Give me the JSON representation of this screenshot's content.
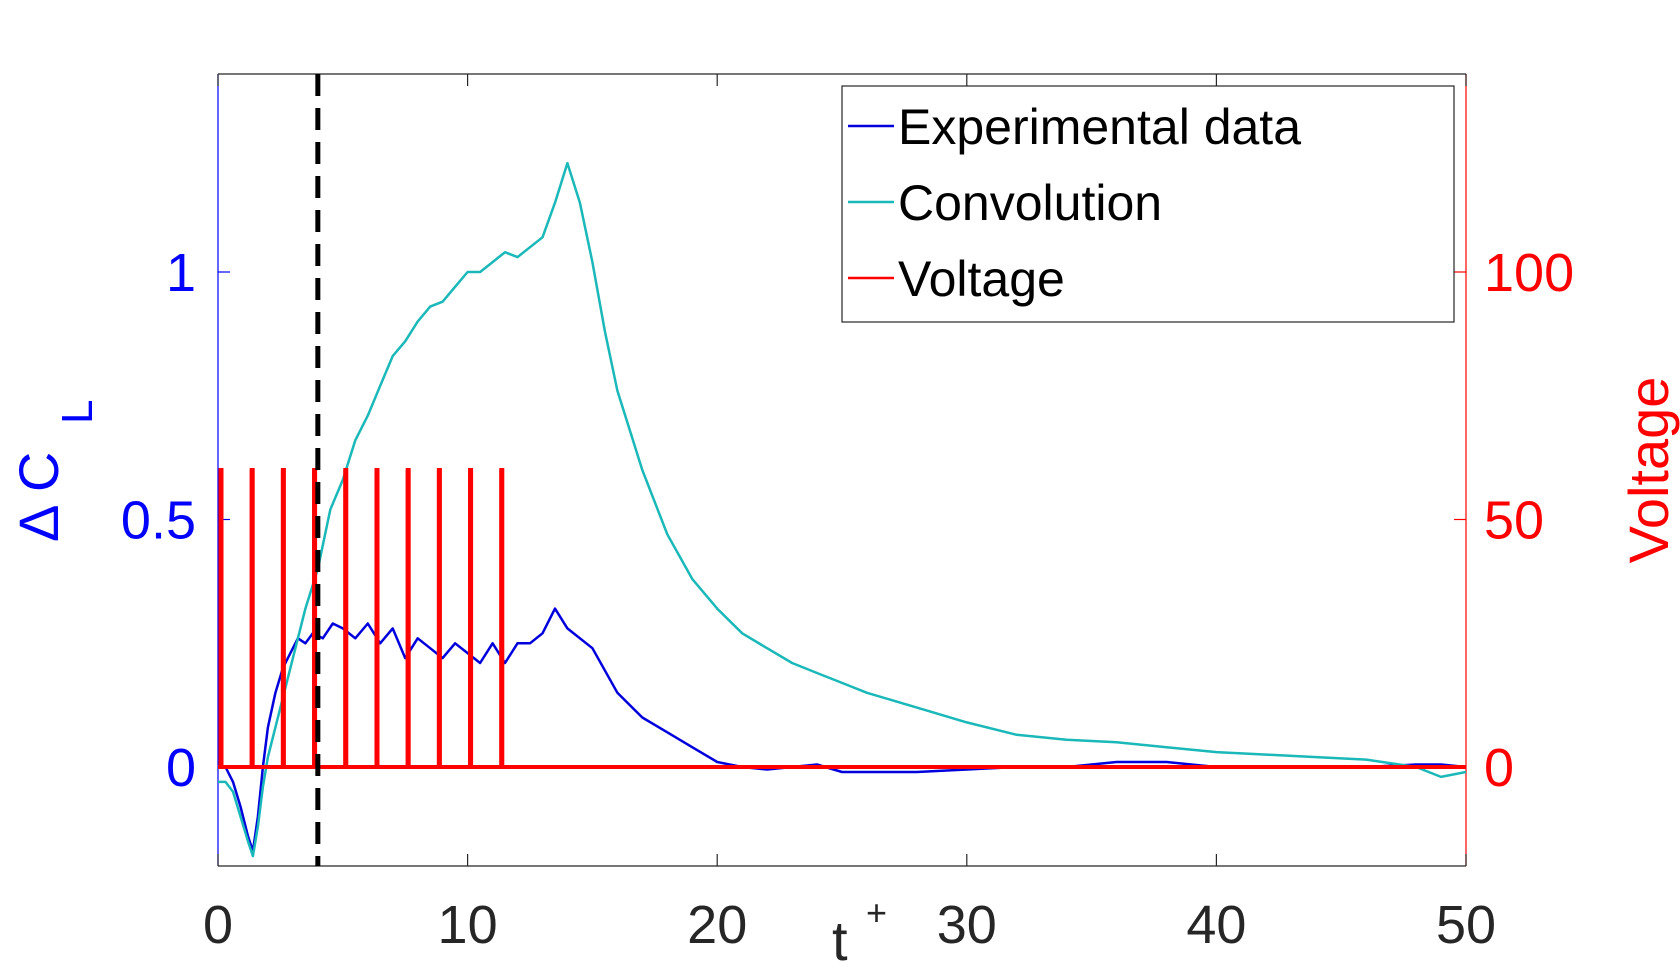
{
  "chart_data": {
    "type": "line",
    "xlabel": "t",
    "xlabel_superscript": "+",
    "ylabel_left": "Δ C",
    "ylabel_left_subscript": "L",
    "ylabel_right": "Voltage",
    "xlim": [
      0,
      50
    ],
    "ylim_left": [
      -0.2,
      1.4
    ],
    "ylim_right": [
      -20,
      140
    ],
    "x_ticks": [
      0,
      10,
      20,
      30,
      40,
      50
    ],
    "x_tick_labels": [
      "0",
      "10",
      "20",
      "30",
      "40",
      "50"
    ],
    "y_left_ticks": [
      0,
      0.5,
      1
    ],
    "y_left_tick_labels": [
      "0",
      "0.5",
      "1"
    ],
    "y_right_ticks": [
      0,
      50,
      100
    ],
    "y_right_tick_labels": [
      "0",
      "50",
      "100"
    ],
    "grid": false,
    "legend_position": "top-right",
    "vline": {
      "x": 4.0,
      "style": "dashed",
      "color": "#000000"
    },
    "colors": {
      "left_axis": "#0000ff",
      "right_axis": "#ff0000",
      "axes_frame": "#262626"
    },
    "series": [
      {
        "name": "Experimental data",
        "axis": "left",
        "color": "#0000dd",
        "x": [
          0,
          0.3,
          0.6,
          0.9,
          1.2,
          1.4,
          1.6,
          1.8,
          2.0,
          2.3,
          2.6,
          2.9,
          3.2,
          3.5,
          3.8,
          4.2,
          4.6,
          5.0,
          5.5,
          6.0,
          6.5,
          7.0,
          7.5,
          8.0,
          8.5,
          9.0,
          9.5,
          10.0,
          10.5,
          11.0,
          11.5,
          12.0,
          12.5,
          13.0,
          13.5,
          14.0,
          15.0,
          16.0,
          17.0,
          18.0,
          19.0,
          20.0,
          21.0,
          22.0,
          23.0,
          24.0,
          25.0,
          26.0,
          27.0,
          28.0,
          30.0,
          32.0,
          34.0,
          36.0,
          38.0,
          40.0,
          42.0,
          44.0,
          46.0,
          48.0,
          49.0,
          50.0
        ],
        "y": [
          0.0,
          0.0,
          -0.03,
          -0.08,
          -0.14,
          -0.17,
          -0.1,
          0.0,
          0.08,
          0.15,
          0.2,
          0.23,
          0.26,
          0.25,
          0.27,
          0.26,
          0.29,
          0.28,
          0.26,
          0.29,
          0.25,
          0.28,
          0.22,
          0.26,
          0.24,
          0.22,
          0.25,
          0.23,
          0.21,
          0.25,
          0.21,
          0.25,
          0.25,
          0.27,
          0.32,
          0.28,
          0.24,
          0.15,
          0.1,
          0.07,
          0.04,
          0.01,
          0.0,
          -0.005,
          0.0,
          0.005,
          -0.01,
          -0.01,
          -0.01,
          -0.01,
          -0.005,
          0.0,
          0.0,
          0.01,
          0.01,
          0.0,
          0.0,
          0.0,
          0.0,
          0.005,
          0.005,
          0.0
        ]
      },
      {
        "name": "Convolution",
        "axis": "left",
        "color": "#1ab8b8",
        "x": [
          0,
          0.3,
          0.6,
          0.9,
          1.2,
          1.4,
          1.6,
          1.8,
          2.0,
          2.5,
          3.0,
          3.5,
          4.0,
          4.5,
          5.0,
          5.5,
          6.0,
          6.5,
          7.0,
          7.5,
          8.0,
          8.5,
          9.0,
          9.5,
          10.0,
          10.5,
          11.0,
          11.5,
          12.0,
          12.5,
          13.0,
          13.5,
          14.0,
          14.5,
          15.0,
          15.5,
          16.0,
          17.0,
          18.0,
          19.0,
          20.0,
          21.0,
          22.0,
          23.0,
          24.0,
          25.0,
          26.0,
          28.0,
          30.0,
          32.0,
          34.0,
          36.0,
          38.0,
          40.0,
          42.0,
          44.0,
          46.0,
          48.0,
          49.0,
          50.0
        ],
        "y": [
          -0.03,
          -0.03,
          -0.05,
          -0.1,
          -0.15,
          -0.18,
          -0.12,
          -0.04,
          0.02,
          0.12,
          0.22,
          0.32,
          0.4,
          0.52,
          0.58,
          0.66,
          0.71,
          0.77,
          0.83,
          0.86,
          0.9,
          0.93,
          0.94,
          0.97,
          1.0,
          1.0,
          1.02,
          1.04,
          1.03,
          1.05,
          1.07,
          1.14,
          1.22,
          1.14,
          1.02,
          0.88,
          0.76,
          0.6,
          0.47,
          0.38,
          0.32,
          0.27,
          0.24,
          0.21,
          0.19,
          0.17,
          0.15,
          0.12,
          0.09,
          0.065,
          0.055,
          0.05,
          0.04,
          0.03,
          0.025,
          0.02,
          0.015,
          0.0,
          -0.02,
          -0.01
        ]
      },
      {
        "name": "Voltage",
        "axis": "right",
        "color": "#ff0000",
        "baseline": 0,
        "pulse_amplitude": 60,
        "pulse_times": [
          0.1,
          1.35,
          2.6,
          3.85,
          5.1,
          6.35,
          7.6,
          8.85,
          10.1,
          11.35
        ]
      }
    ],
    "legend": [
      "Experimental data",
      "Convolution",
      "Voltage"
    ]
  }
}
